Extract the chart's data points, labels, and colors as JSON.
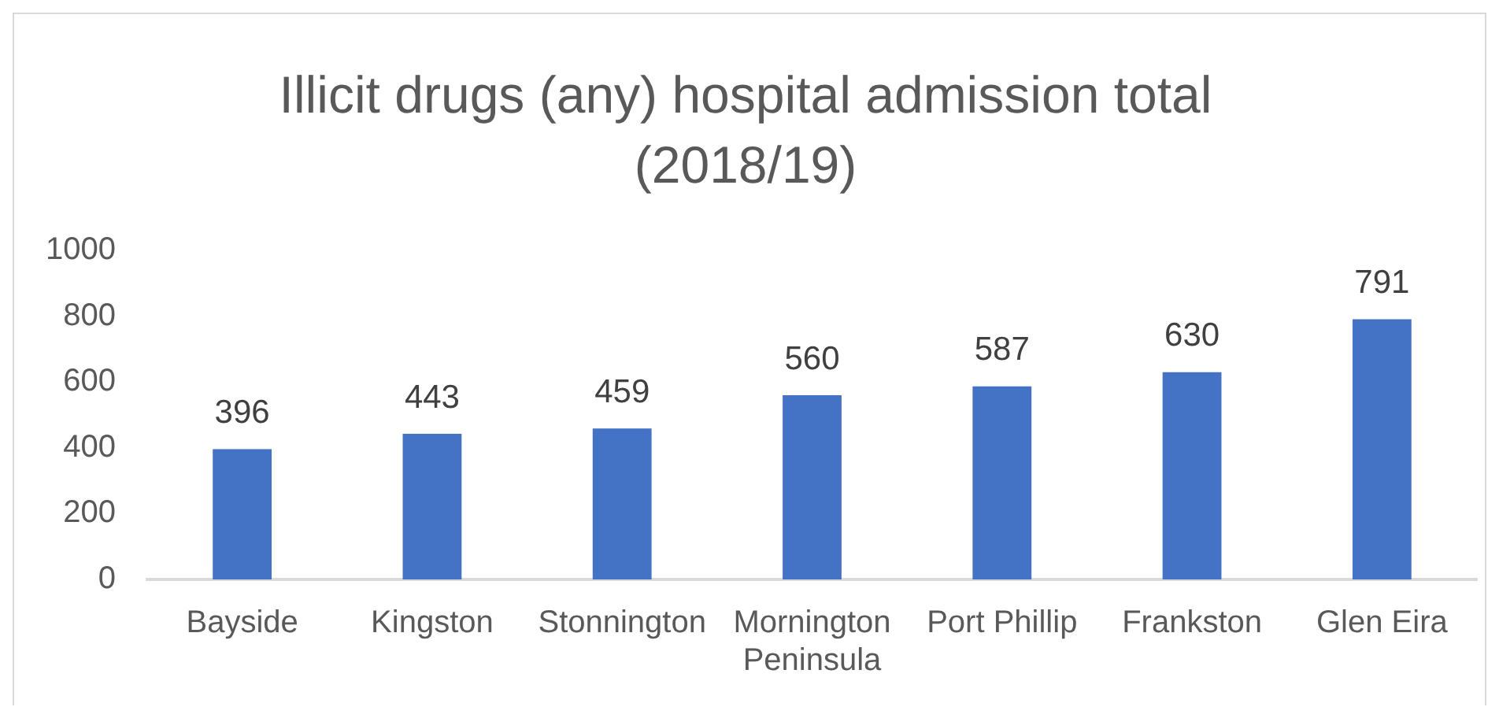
{
  "chart_data": {
    "type": "bar",
    "title": "Illicit drugs (any) hospital admission total (2018/19)",
    "categories": [
      "Bayside",
      "Kingston",
      "Stonnington",
      "Mornington Peninsula",
      "Port Phillip",
      "Frankston",
      "Glen Eira"
    ],
    "values": [
      396,
      443,
      459,
      560,
      587,
      630,
      791
    ],
    "color": "#4472c4",
    "ylim": [
      0,
      1000
    ],
    "yticks": [
      0,
      200,
      400,
      600,
      800,
      1000
    ],
    "grid": false,
    "data_labels": true
  }
}
